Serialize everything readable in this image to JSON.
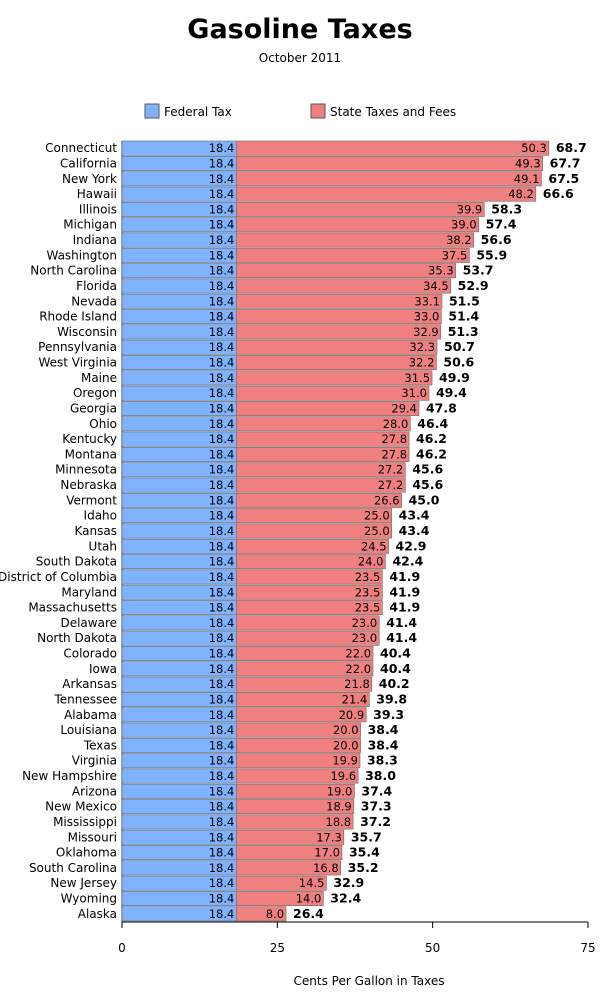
{
  "chart_data": {
    "type": "bar",
    "orientation": "horizontal",
    "stacked": true,
    "title": "Gasoline Taxes",
    "subtitle": "October 2011",
    "xlabel": "Cents Per Gallon in Taxes",
    "xlim": [
      0,
      75
    ],
    "xticks": [
      0,
      25,
      50,
      75
    ],
    "legend_position": "top",
    "categories": [
      "Connecticut",
      "California",
      "New York",
      "Hawaii",
      "Illinois",
      "Michigan",
      "Indiana",
      "Washington",
      "North Carolina",
      "Florida",
      "Nevada",
      "Rhode Island",
      "Wisconsin",
      "Pennsylvania",
      "West Virginia",
      "Maine",
      "Oregon",
      "Georgia",
      "Ohio",
      "Kentucky",
      "Montana",
      "Minnesota",
      "Nebraska",
      "Vermont",
      "Idaho",
      "Kansas",
      "Utah",
      "South Dakota",
      "District of Columbia",
      "Maryland",
      "Massachusetts",
      "Delaware",
      "North Dakota",
      "Colorado",
      "Iowa",
      "Arkansas",
      "Tennessee",
      "Alabama",
      "Louisiana",
      "Texas",
      "Virginia",
      "New Hampshire",
      "Arizona",
      "New Mexico",
      "Mississippi",
      "Missouri",
      "Oklahoma",
      "South Carolina",
      "New Jersey",
      "Wyoming",
      "Alaska"
    ],
    "series": [
      {
        "name": "Federal Tax",
        "color": "#7fb2ff",
        "values": [
          18.4,
          18.4,
          18.4,
          18.4,
          18.4,
          18.4,
          18.4,
          18.4,
          18.4,
          18.4,
          18.4,
          18.4,
          18.4,
          18.4,
          18.4,
          18.4,
          18.4,
          18.4,
          18.4,
          18.4,
          18.4,
          18.4,
          18.4,
          18.4,
          18.4,
          18.4,
          18.4,
          18.4,
          18.4,
          18.4,
          18.4,
          18.4,
          18.4,
          18.4,
          18.4,
          18.4,
          18.4,
          18.4,
          18.4,
          18.4,
          18.4,
          18.4,
          18.4,
          18.4,
          18.4,
          18.4,
          18.4,
          18.4,
          18.4,
          18.4,
          18.4
        ]
      },
      {
        "name": "State Taxes and Fees",
        "color": "#f08080",
        "values": [
          50.3,
          49.3,
          49.1,
          48.2,
          39.9,
          39.0,
          38.2,
          37.5,
          35.3,
          34.5,
          33.1,
          33.0,
          32.9,
          32.3,
          32.2,
          31.5,
          31.0,
          29.4,
          28.0,
          27.8,
          27.8,
          27.2,
          27.2,
          26.6,
          25.0,
          25.0,
          24.5,
          24.0,
          23.5,
          23.5,
          23.5,
          23.0,
          23.0,
          22.0,
          22.0,
          21.8,
          21.4,
          20.9,
          20.0,
          20.0,
          19.9,
          19.6,
          19.0,
          18.9,
          18.8,
          17.3,
          17.0,
          16.8,
          14.5,
          14.0,
          8.0
        ]
      }
    ],
    "totals": [
      68.7,
      67.7,
      67.5,
      66.6,
      58.3,
      57.4,
      56.6,
      55.9,
      53.7,
      52.9,
      51.5,
      51.4,
      51.3,
      50.7,
      50.6,
      49.9,
      49.4,
      47.8,
      46.4,
      46.2,
      46.2,
      45.6,
      45.6,
      45.0,
      43.4,
      43.4,
      42.9,
      42.4,
      41.9,
      41.9,
      41.9,
      41.4,
      41.4,
      40.4,
      40.4,
      40.2,
      39.8,
      39.3,
      38.4,
      38.4,
      38.3,
      38.0,
      37.4,
      37.3,
      37.2,
      35.7,
      35.4,
      35.2,
      32.9,
      32.4,
      26.4
    ]
  }
}
